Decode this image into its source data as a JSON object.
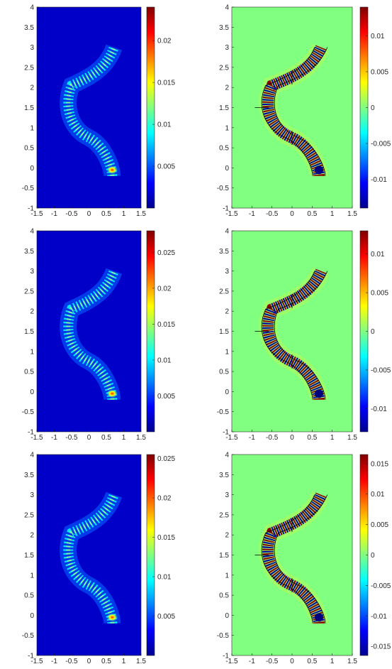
{
  "colormap": "jet",
  "colorbar_stops": [
    "#00008f",
    "#0000ff",
    "#0080ff",
    "#00ffff",
    "#80ff80",
    "#ffff00",
    "#ff8000",
    "#ff0000",
    "#800000"
  ],
  "chart_data": [
    {
      "type": "heatmap",
      "panel": "intensity-row1",
      "xlim": [
        -1.5,
        1.5
      ],
      "ylim": [
        -1,
        4
      ],
      "x_ticks": [
        "-1.5",
        "-1",
        "-0.5",
        "0",
        "0.5",
        "1",
        "1.5"
      ],
      "y_ticks": [
        "-1",
        "-0.5",
        "0",
        "0.5",
        "1",
        "1.5",
        "2",
        "2.5",
        "3",
        "3.5",
        "4"
      ],
      "colorbar": {
        "range": [
          0,
          0.024
        ],
        "ticks": [
          "0.005",
          "0.01",
          "0.015",
          "0.02"
        ],
        "tick_values": [
          0.005,
          0.01,
          0.015,
          0.02
        ]
      },
      "waveguide_outline": false
    },
    {
      "type": "heatmap",
      "panel": "field-row1",
      "xlim": [
        -1.5,
        1.5
      ],
      "ylim": [
        -1,
        4
      ],
      "x_ticks": [
        "-1.5",
        "-1",
        "-0.5",
        "0",
        "0.5",
        "1",
        "1.5"
      ],
      "y_ticks": [
        "-1",
        "-0.5",
        "0",
        "0.5",
        "1",
        "1.5",
        "2",
        "2.5",
        "3",
        "3.5",
        "4"
      ],
      "colorbar": {
        "range": [
          -0.014,
          0.014
        ],
        "ticks": [
          "-0.01",
          "-0.005",
          "0",
          "0.005",
          "0.01"
        ],
        "tick_values": [
          -0.01,
          -0.005,
          0,
          0.005,
          0.01
        ]
      },
      "waveguide_outline": true
    },
    {
      "type": "heatmap",
      "panel": "intensity-row2",
      "xlim": [
        -1.5,
        1.5
      ],
      "ylim": [
        -1,
        4
      ],
      "x_ticks": [
        "-1.5",
        "-1",
        "-0.5",
        "0",
        "0.5",
        "1",
        "1.5"
      ],
      "y_ticks": [
        "-1",
        "-0.5",
        "0",
        "0.5",
        "1",
        "1.5",
        "2",
        "2.5",
        "3",
        "3.5",
        "4"
      ],
      "colorbar": {
        "range": [
          0,
          0.028
        ],
        "ticks": [
          "0.005",
          "0.01",
          "0.015",
          "0.02",
          "0.025"
        ],
        "tick_values": [
          0.005,
          0.01,
          0.015,
          0.02,
          0.025
        ]
      },
      "waveguide_outline": false
    },
    {
      "type": "heatmap",
      "panel": "field-row2",
      "xlim": [
        -1.5,
        1.5
      ],
      "ylim": [
        -1,
        4
      ],
      "x_ticks": [
        "-1.5",
        "-1",
        "-0.5",
        "0",
        "0.5",
        "1",
        "1.5"
      ],
      "y_ticks": [
        "-1",
        "-0.5",
        "0",
        "0.5",
        "1",
        "1.5",
        "2",
        "2.5",
        "3",
        "3.5",
        "4"
      ],
      "colorbar": {
        "range": [
          -0.013,
          0.013
        ],
        "ticks": [
          "-0.01",
          "-0.005",
          "0",
          "0.005",
          "0.01"
        ],
        "tick_values": [
          -0.01,
          -0.005,
          0,
          0.005,
          0.01
        ]
      },
      "waveguide_outline": true
    },
    {
      "type": "heatmap",
      "panel": "intensity-row3",
      "xlim": [
        -1.5,
        1.5
      ],
      "ylim": [
        -1,
        4
      ],
      "x_ticks": [
        "-1.5",
        "-1",
        "-0.5",
        "0",
        "0.5",
        "1",
        "1.5"
      ],
      "y_ticks": [
        "-1",
        "-0.5",
        "0",
        "0.5",
        "1",
        "1.5",
        "2",
        "2.5",
        "3",
        "3.5",
        "4"
      ],
      "colorbar": {
        "range": [
          0,
          0.0255
        ],
        "ticks": [
          "0.005",
          "0.01",
          "0.015",
          "0.02",
          "0.025"
        ],
        "tick_values": [
          0.005,
          0.01,
          0.015,
          0.02,
          0.025
        ]
      },
      "waveguide_outline": false
    },
    {
      "type": "heatmap",
      "panel": "field-row3",
      "xlim": [
        -1.5,
        1.5
      ],
      "ylim": [
        -1,
        4
      ],
      "x_ticks": [
        "-1.5",
        "-1",
        "-0.5",
        "0",
        "0.5",
        "1",
        "1.5"
      ],
      "y_ticks": [
        "-1",
        "-0.5",
        "0",
        "0.5",
        "1",
        "1.5",
        "2",
        "2.5",
        "3",
        "3.5",
        "4"
      ],
      "colorbar": {
        "range": [
          -0.0165,
          0.0165
        ],
        "ticks": [
          "-0.015",
          "-0.01",
          "-0.005",
          "0",
          "0.005",
          "0.01",
          "0.015"
        ],
        "tick_values": [
          -0.015,
          -0.01,
          -0.005,
          0,
          0.005,
          0.01,
          0.015
        ]
      },
      "waveguide_outline": true
    }
  ]
}
